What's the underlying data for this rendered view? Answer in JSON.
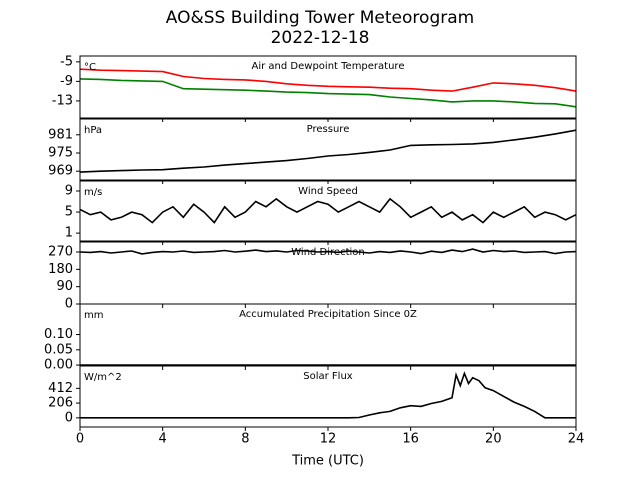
{
  "title": "AO&SS Building Tower Meteorogram",
  "subtitle": "2022-12-18",
  "x_label": "Time (UTC)",
  "xlim": [
    0,
    24
  ],
  "xticks": [
    0,
    4,
    8,
    12,
    16,
    20,
    24
  ],
  "chart_data": [
    {
      "type": "line",
      "title": "Air and Dewpoint Temperature",
      "unit": "°C",
      "ylim": [
        -16.5,
        -3.8
      ],
      "yticks": [
        -5,
        -9,
        -13
      ],
      "x": [
        0,
        1,
        2,
        3,
        4,
        5,
        6,
        7,
        8,
        9,
        10,
        11,
        12,
        13,
        14,
        15,
        16,
        17,
        18,
        19,
        20,
        21,
        22,
        23,
        24
      ],
      "series": [
        {
          "color": "#ff0000",
          "values": [
            -6.5,
            -6.7,
            -6.8,
            -6.9,
            -7,
            -8,
            -8.4,
            -8.6,
            -8.7,
            -9,
            -9.5,
            -9.8,
            -10,
            -10.1,
            -10.2,
            -10.4,
            -10.5,
            -10.8,
            -11,
            -10.2,
            -9.3,
            -9.5,
            -9.8,
            -10.3,
            -11
          ]
        },
        {
          "color": "#008000",
          "values": [
            -8.5,
            -8.6,
            -8.8,
            -8.9,
            -9,
            -10.5,
            -10.6,
            -10.7,
            -10.8,
            -11,
            -11.2,
            -11.3,
            -11.5,
            -11.6,
            -11.7,
            -12.2,
            -12.5,
            -12.8,
            -13.2,
            -13,
            -13,
            -13.2,
            -13.5,
            -13.6,
            -14.2
          ]
        }
      ]
    },
    {
      "type": "line",
      "title": "Pressure",
      "unit": "hPa",
      "ylim": [
        966.1,
        986.2
      ],
      "yticks": [
        981,
        975,
        969
      ],
      "x": [
        0,
        1,
        2,
        3,
        4,
        5,
        6,
        7,
        8,
        9,
        10,
        11,
        12,
        13,
        14,
        15,
        16,
        17,
        18,
        19,
        20,
        21,
        22,
        23,
        24
      ],
      "series": [
        {
          "color": "#000000",
          "values": [
            968.7,
            969,
            969.2,
            969.4,
            969.5,
            970,
            970.4,
            971,
            971.5,
            972,
            972.5,
            973.2,
            974,
            974.5,
            975.2,
            976,
            977.5,
            977.7,
            977.8,
            978,
            978.5,
            979.3,
            980.2,
            981.3,
            982.5
          ]
        }
      ]
    },
    {
      "type": "line",
      "title": "Wind Speed",
      "unit": "m/s",
      "ylim": [
        -0.5,
        10.9
      ],
      "yticks": [
        9,
        5,
        1
      ],
      "x": [
        0,
        0.5,
        1,
        1.5,
        2,
        2.5,
        3,
        3.5,
        4,
        4.5,
        5,
        5.5,
        6,
        6.5,
        7,
        7.5,
        8,
        8.5,
        9,
        9.5,
        10,
        10.5,
        11,
        11.5,
        12,
        12.5,
        13,
        13.5,
        14,
        14.5,
        15,
        15.5,
        16,
        16.5,
        17,
        17.5,
        18,
        18.5,
        19,
        19.5,
        20,
        20.5,
        21,
        21.5,
        22,
        22.5,
        23,
        23.5,
        24
      ],
      "series": [
        {
          "color": "#000000",
          "values": [
            5.5,
            4.5,
            5,
            3.5,
            4,
            5,
            4.5,
            3,
            5,
            6,
            4,
            6.5,
            5,
            3,
            6,
            4,
            5,
            7,
            6,
            7.5,
            6,
            5,
            6,
            7,
            6.5,
            5,
            6,
            7,
            6,
            5,
            7.5,
            6,
            4,
            5,
            6,
            4,
            5,
            3.5,
            4.5,
            3,
            5,
            4,
            5,
            6,
            4,
            5,
            4.5,
            3.5,
            4.5
          ]
        }
      ]
    },
    {
      "type": "line",
      "title": "Wind Direction",
      "unit": "",
      "ylim": [
        0,
        322
      ],
      "yticks": [
        270,
        180,
        90,
        0
      ],
      "x": [
        0,
        0.5,
        1,
        1.5,
        2,
        2.5,
        3,
        3.5,
        4,
        4.5,
        5,
        5.5,
        6,
        6.5,
        7,
        7.5,
        8,
        8.5,
        9,
        9.5,
        10,
        10.5,
        11,
        11.5,
        12,
        12.5,
        13,
        13.5,
        14,
        14.5,
        15,
        15.5,
        16,
        16.5,
        17,
        17.5,
        18,
        18.5,
        19,
        19.5,
        20,
        20.5,
        21,
        21.5,
        22,
        22.5,
        23,
        23.5,
        24
      ],
      "series": [
        {
          "color": "#000000",
          "values": [
            270,
            268,
            272,
            265,
            270,
            275,
            260,
            268,
            272,
            270,
            275,
            268,
            270,
            272,
            278,
            270,
            274,
            280,
            272,
            276,
            270,
            278,
            275,
            270,
            272,
            268,
            275,
            270,
            265,
            272,
            268,
            276,
            270,
            262,
            274,
            268,
            280,
            272,
            285,
            270,
            278,
            272,
            275,
            268,
            270,
            272,
            262,
            270,
            272
          ]
        }
      ]
    },
    {
      "type": "line",
      "title": "Accumulated Precipitation Since 0Z",
      "unit": "mm",
      "ylim": [
        -0.003,
        0.2
      ],
      "yticks": [
        {
          "value": 0.1,
          "label": "0.10"
        },
        {
          "value": 0.05,
          "label": "0.05"
        },
        {
          "value": 0,
          "label": "0.00"
        }
      ],
      "x": [
        0,
        1,
        2,
        3,
        4,
        5,
        6,
        7,
        8,
        9,
        10,
        11,
        12,
        13,
        14,
        15,
        16,
        17,
        18,
        19,
        20,
        21,
        22,
        23,
        24
      ],
      "series": [
        {
          "color": "#000000",
          "values": [
            0,
            0,
            0,
            0,
            0,
            0,
            0,
            0,
            0,
            0,
            0,
            0,
            0,
            0,
            0,
            0,
            0,
            0,
            0,
            0,
            0,
            0,
            0,
            0,
            0
          ]
        }
      ]
    },
    {
      "type": "line",
      "title": "Solar Flux",
      "unit": "W/m^2",
      "ylim": [
        -128,
        724
      ],
      "yticks": [
        412,
        206,
        0
      ],
      "x": [
        0,
        13,
        13.5,
        14,
        14.5,
        15,
        15.5,
        16,
        16.5,
        17,
        17.5,
        18,
        18.2,
        18.4,
        18.6,
        18.8,
        19,
        19.3,
        19.6,
        20,
        20.5,
        21,
        21.5,
        22,
        22.5,
        24
      ],
      "series": [
        {
          "color": "#000000",
          "values": [
            0,
            0,
            5,
            40,
            70,
            90,
            140,
            170,
            160,
            200,
            230,
            280,
            600,
            450,
            620,
            480,
            560,
            520,
            420,
            380,
            300,
            220,
            160,
            90,
            0,
            0
          ]
        }
      ]
    }
  ]
}
